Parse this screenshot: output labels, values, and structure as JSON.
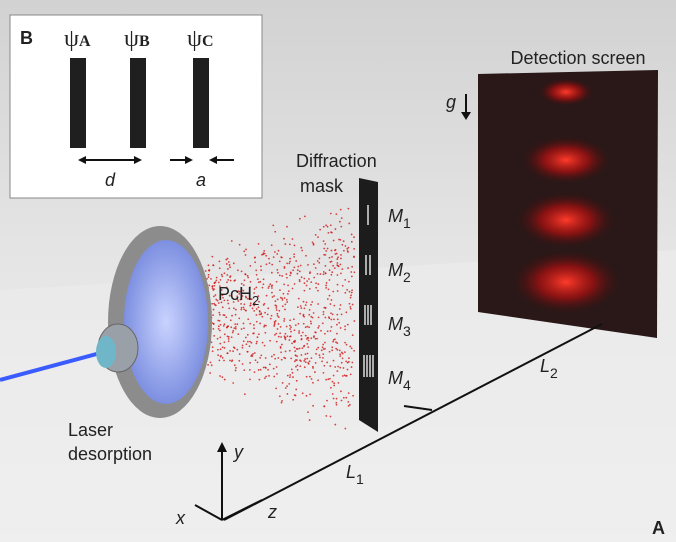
{
  "panel_a": {
    "label": "A",
    "screen": "Detection screen",
    "gravity": "g",
    "mask": [
      "Diffraction",
      "mask"
    ],
    "mask_slits": [
      {
        "text": "M",
        "sub": "1"
      },
      {
        "text": "M",
        "sub": "2"
      },
      {
        "text": "M",
        "sub": "3"
      },
      {
        "text": "M",
        "sub": "4"
      }
    ],
    "molecule": {
      "text": "PcH",
      "sub": "2"
    },
    "source": [
      "Laser",
      "desorption"
    ],
    "axes": {
      "x": "x",
      "y": "y",
      "z": "z"
    },
    "distances": [
      {
        "text": "L",
        "sub": "1"
      },
      {
        "text": "L",
        "sub": "2"
      }
    ]
  },
  "panel_b": {
    "label": "B",
    "waves": [
      {
        "text": "ψ",
        "sub": "A"
      },
      {
        "text": "ψ",
        "sub": "B"
      },
      {
        "text": "ψ",
        "sub": "C"
      }
    ],
    "slit_spacing": "d",
    "slit_width": "a"
  }
}
